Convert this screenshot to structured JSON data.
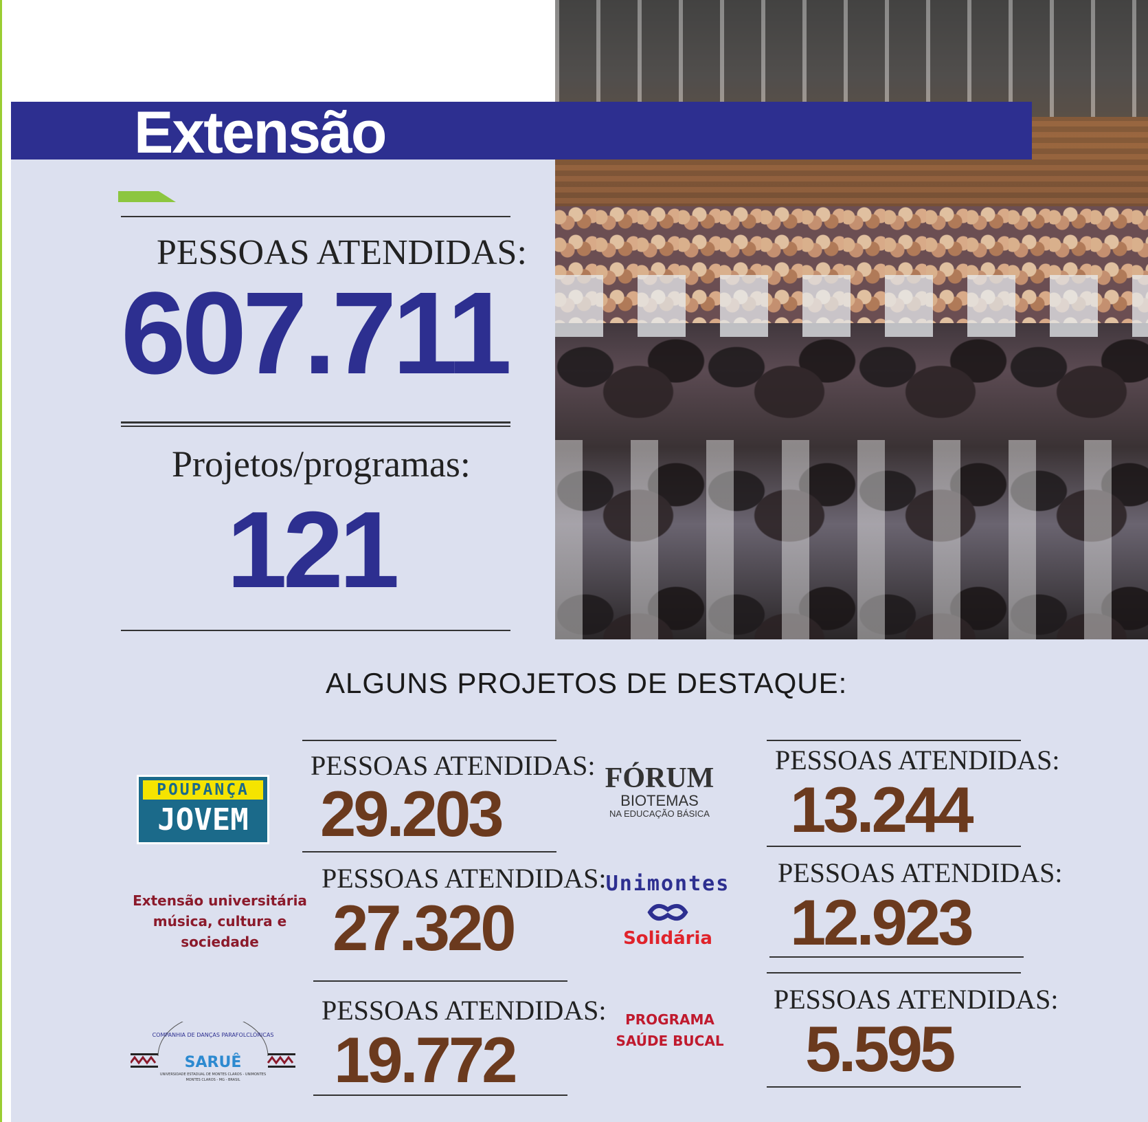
{
  "header": {
    "title": "Extensão"
  },
  "summary": {
    "people_label": "PESSOAS ATENDIDAS:",
    "people_value": "607.711",
    "projects_label": "Projetos/programas:",
    "projects_value": "121"
  },
  "highlights": {
    "heading": "ALGUNS PROJETOS DE DESTAQUE:",
    "items": [
      {
        "logo": "POUPANÇA JOVEM",
        "logo_top": "POUPANÇA",
        "logo_bottom": "JOVEM",
        "label": "PESSOAS ATENDIDAS:",
        "value": "29.203"
      },
      {
        "logo": "FÓRUM BIOTEMAS NA EDUCAÇÃO BÁSICA",
        "logo_l1": "FÓRUM",
        "logo_l2": "BIOTEMAS",
        "logo_l3": "NA EDUCAÇÃO BÁSICA",
        "label": "PESSOAS ATENDIDAS:",
        "value": "13.244"
      },
      {
        "logo_l1": "Extensão universitária",
        "logo_l2": "música, cultura e",
        "logo_l3": "sociedade",
        "label": "PESSOAS ATENDIDAS:",
        "value": "27.320"
      },
      {
        "logo_l1": "Unimontes",
        "logo_l2": "Solidária",
        "label": "PESSOAS ATENDIDAS:",
        "value": "12.923"
      },
      {
        "logo_l1": "COMPANHIA DE DANÇAS PARAFOLCLÓRICAS",
        "logo_l2": "SARUÊ",
        "logo_l3": "UNIVERSIDADE ESTADUAL DE MONTES CLAROS - UNIMONTES",
        "logo_l4": "MONTES CLAROS - MG - BRASIL",
        "label": "PESSOAS ATENDIDAS:",
        "value": "19.772"
      },
      {
        "logo_l1": "PROGRAMA",
        "logo_l2": "SAÚDE BUCAL",
        "label": "PESSOAS ATENDIDAS:",
        "value": "5.595"
      }
    ]
  },
  "colors": {
    "navy": "#2d2f90",
    "brown": "#6b3a1e",
    "panel": "#dce0ef",
    "green": "#8cc63f"
  }
}
